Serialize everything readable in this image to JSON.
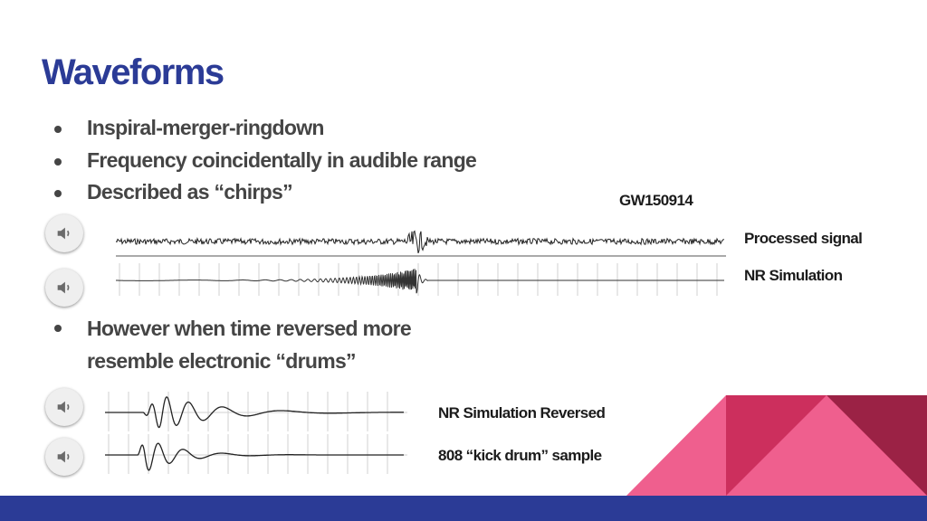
{
  "slide": {
    "title": "Waveforms",
    "bullets": [
      "Inspiral-merger-ringdown",
      "Frequency coincidentally in audible range",
      "Described as “chirps”"
    ],
    "bullet2_lines": [
      "However when time reversed more",
      "resemble electronic “drums”"
    ]
  },
  "labels": {
    "event": "GW150914",
    "processed": "Processed signal",
    "nr_sim": "NR Simulation",
    "nr_reversed": "NR Simulation Reversed",
    "kick": "808 “kick drum” sample"
  },
  "icons": {
    "audio": "speaker-icon"
  },
  "colors": {
    "title": "#2b3b96",
    "text": "#454545",
    "footer": "#2b3b96",
    "accent_pink": "#ef5f8e",
    "accent_red": "#cc2f5d",
    "accent_dark": "#9b2245"
  }
}
